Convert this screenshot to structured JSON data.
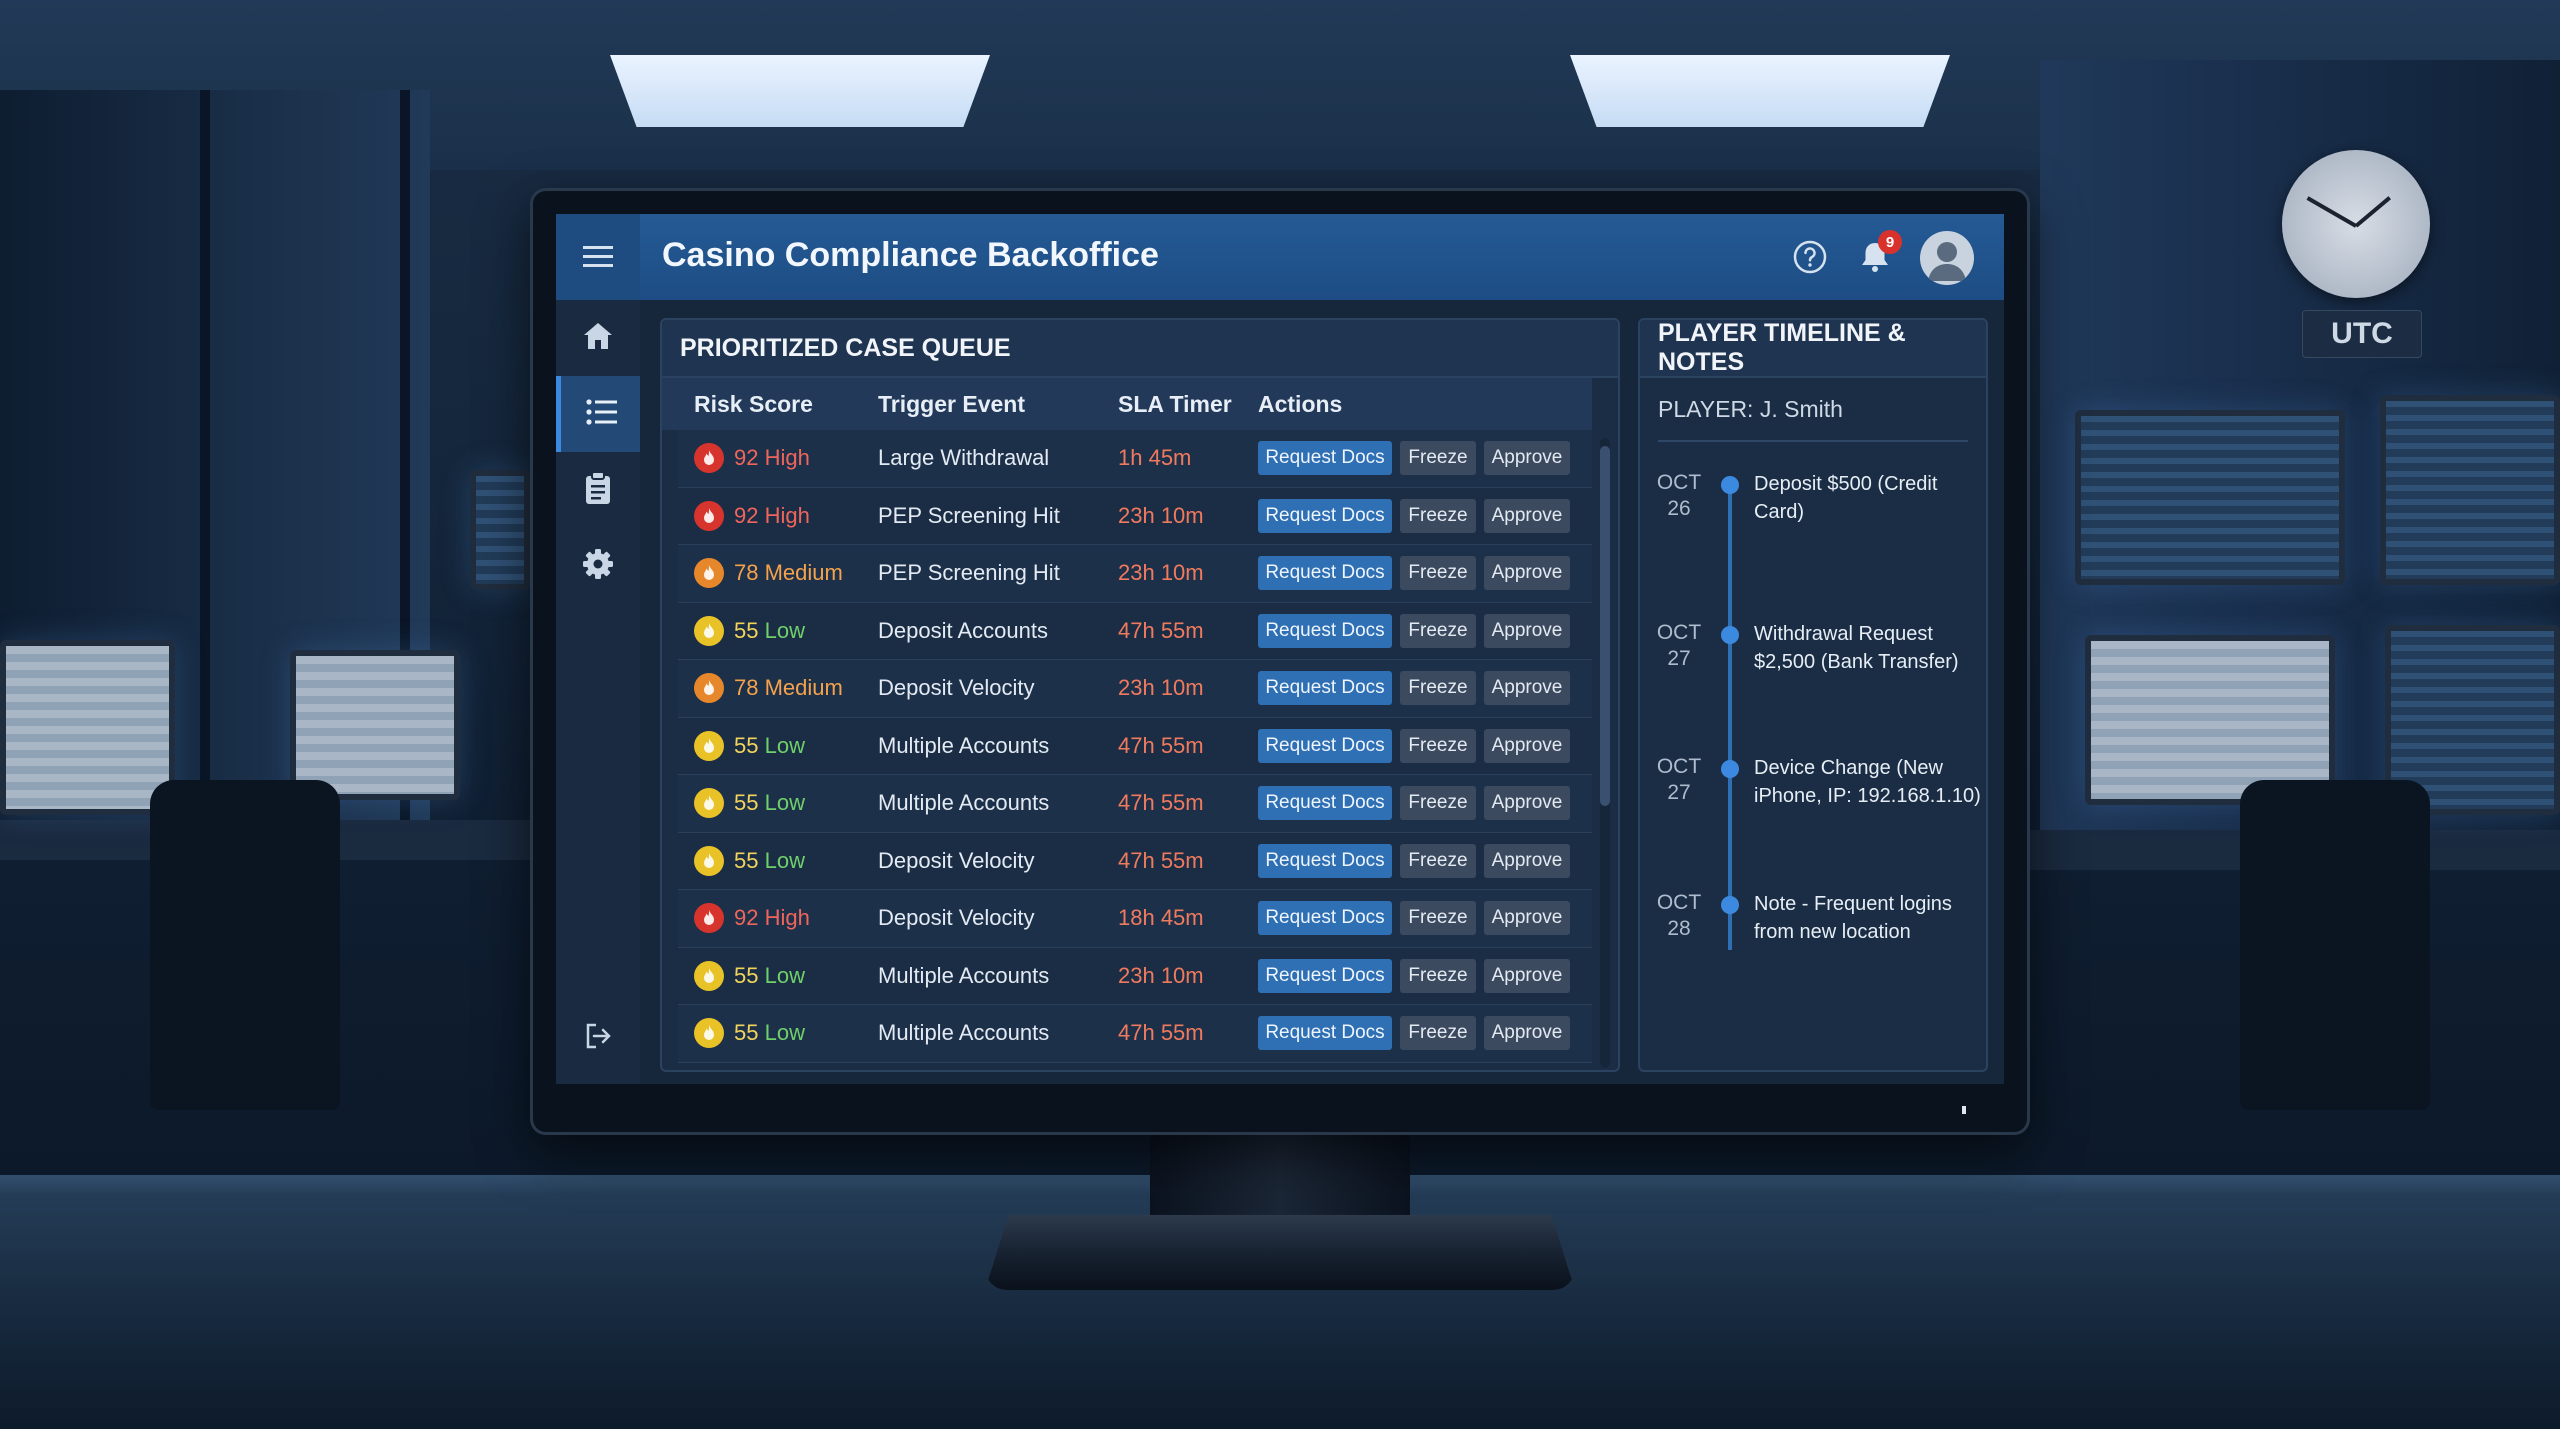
{
  "app": {
    "title": "Casino Compliance Backoffice"
  },
  "header": {
    "notification_count": "9"
  },
  "background": {
    "clock_label": "UTC"
  },
  "queue": {
    "title": "PRIORITIZED CASE QUEUE",
    "columns": {
      "risk": "Risk Score",
      "trigger": "Trigger Event",
      "sla": "SLA Timer",
      "actions": "Actions"
    },
    "action_labels": {
      "request": "Request Docs",
      "freeze": "Freeze",
      "approve": "Approve"
    },
    "rows": [
      {
        "score": "92",
        "level": "High",
        "trigger": "Large Withdrawal",
        "sla": "1h 45m"
      },
      {
        "score": "92",
        "level": "High",
        "trigger": "PEP Screening Hit",
        "sla": "23h 10m"
      },
      {
        "score": "78",
        "level": "Medium",
        "trigger": "PEP Screening Hit",
        "sla": "23h 10m"
      },
      {
        "score": "55",
        "level": "Low",
        "trigger": "Deposit Accounts",
        "sla": "47h 55m"
      },
      {
        "score": "78",
        "level": "Medium",
        "trigger": "Deposit Velocity",
        "sla": "23h 10m"
      },
      {
        "score": "55",
        "level": "Low",
        "trigger": "Multiple Accounts",
        "sla": "47h 55m"
      },
      {
        "score": "55",
        "level": "Low",
        "trigger": "Multiple Accounts",
        "sla": "47h 55m"
      },
      {
        "score": "55",
        "level": "Low",
        "trigger": "Deposit Velocity",
        "sla": "47h 55m"
      },
      {
        "score": "92",
        "level": "High",
        "trigger": "Deposit Velocity",
        "sla": "18h 45m"
      },
      {
        "score": "55",
        "level": "Low",
        "trigger": "Multiple Accounts",
        "sla": "23h 10m"
      },
      {
        "score": "55",
        "level": "Low",
        "trigger": "Multiple Accounts",
        "sla": "47h 55m"
      }
    ]
  },
  "timeline": {
    "title": "PLAYER TIMELINE & NOTES",
    "player": "PLAYER: J. Smith",
    "events": [
      {
        "month": "OCT",
        "day": "26",
        "text": "Deposit $500 (Credit Card)"
      },
      {
        "month": "OCT",
        "day": "27",
        "text": "Withdrawal Request $2,500 (Bank Transfer)"
      },
      {
        "month": "OCT",
        "day": "27",
        "text": "Device Change (New iPhone, IP: 192.168.1.10)"
      },
      {
        "month": "OCT",
        "day": "28",
        "text": "Note - Frequent logins from new location"
      }
    ]
  },
  "icons": {
    "menu": "hamburger-menu-icon",
    "help": "question-circle-icon",
    "notifications": "bell-icon",
    "user": "user-avatar-icon",
    "home": "home-icon",
    "queue": "list-icon",
    "reports": "clipboard-icon",
    "settings": "gear-icon",
    "logout": "logout-icon",
    "risk": "flame-icon"
  },
  "colors": {
    "header": "#1d4d84",
    "accent": "#3b8ae0",
    "high": "#d8342e",
    "medium": "#e7872b",
    "low": "#e8c227",
    "sla": "#f07a5e"
  }
}
